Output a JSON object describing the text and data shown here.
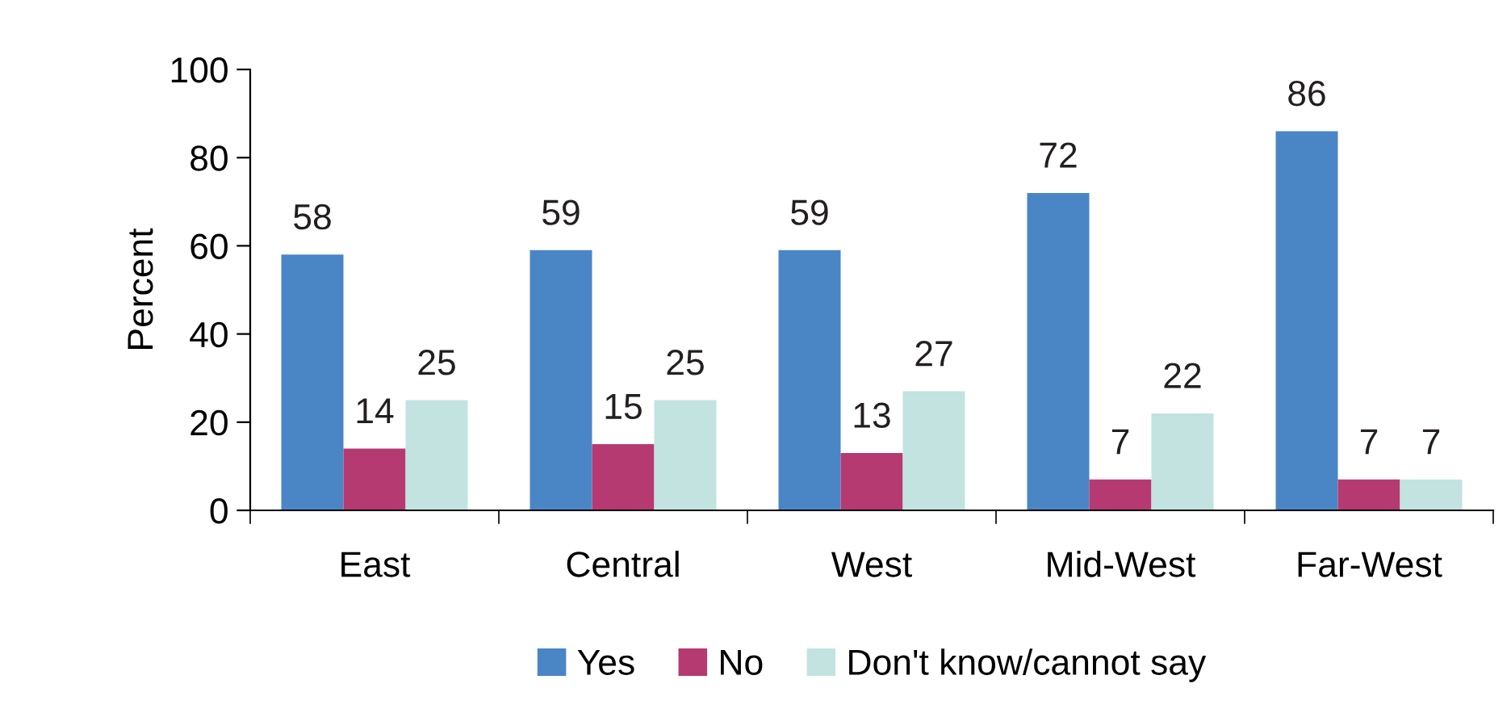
{
  "chart_data": {
    "type": "bar",
    "ylabel": "Percent",
    "categories": [
      "East",
      "Central",
      "West",
      "Mid-West",
      "Far-West"
    ],
    "series": [
      {
        "name": "Yes",
        "color": "#4a86c5",
        "values": [
          58,
          59,
          59,
          72,
          86
        ]
      },
      {
        "name": "No",
        "color": "#b53a72",
        "values": [
          14,
          15,
          13,
          7,
          7
        ]
      },
      {
        "name": "Don't know/cannot say",
        "color": "#c2e3e0",
        "values": [
          25,
          25,
          27,
          22,
          7
        ]
      }
    ],
    "ylim": [
      0,
      100
    ],
    "yticks": [
      0,
      20,
      40,
      60,
      80,
      100
    ],
    "grid": false,
    "legend": "bottom",
    "data_labels": true
  }
}
